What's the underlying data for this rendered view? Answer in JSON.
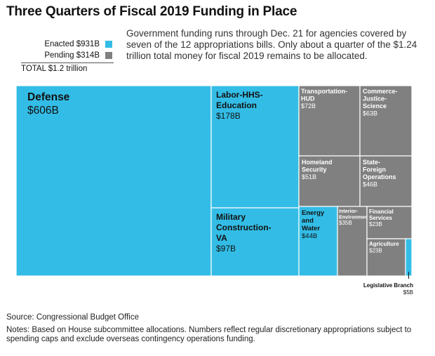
{
  "title": "Three Quarters of Fiscal 2019 Funding in Place",
  "description": "Government funding runs through Dec. 21 for agencies covered by seven of the 12 appropriations bills. Only about a quarter of the $1.24 trillion total money for fiscal 2019 remains to be allocated.",
  "legend": {
    "enacted": "Enacted $931B",
    "pending": "Pending $314B",
    "total": "TOTAL $1.2 trillion"
  },
  "colors": {
    "enacted": "#33bde6",
    "pending": "#808080"
  },
  "source": "Source: Congressional Budget Office",
  "notes": "Notes: Based on House subcommittee allocations. Numbers reflect regular discretionary appropriations subject to spending caps and exclude overseas contingency operations funding.",
  "chart_data": {
    "type": "treemap",
    "unit": "billion USD",
    "items": [
      {
        "name": "Defense",
        "value": 606,
        "label": "$606B",
        "status": "enacted"
      },
      {
        "name": "Labor-HHS-Education",
        "value": 178,
        "label": "$178B",
        "status": "enacted"
      },
      {
        "name": "Military Construction-VA",
        "value": 97,
        "label": "$97B",
        "status": "enacted"
      },
      {
        "name": "Transportation-HUD",
        "value": 72,
        "label": "$72B",
        "status": "pending"
      },
      {
        "name": "Commerce-Justice-Science",
        "value": 63,
        "label": "$63B",
        "status": "pending"
      },
      {
        "name": "Homeland Security",
        "value": 51,
        "label": "$51B",
        "status": "pending"
      },
      {
        "name": "State-Foreign Operations",
        "value": 46,
        "label": "$46B",
        "status": "pending"
      },
      {
        "name": "Energy and Water",
        "value": 44,
        "label": "$44B",
        "status": "enacted"
      },
      {
        "name": "Interior-Environment",
        "value": 35,
        "label": "$35B",
        "status": "pending"
      },
      {
        "name": "Financial Services",
        "value": 23,
        "label": "$23B",
        "status": "pending"
      },
      {
        "name": "Agriculture",
        "value": 23,
        "label": "$23B",
        "status": "pending"
      },
      {
        "name": "Legislative Branch",
        "value": 5,
        "label": "$5B",
        "status": "enacted"
      }
    ]
  }
}
